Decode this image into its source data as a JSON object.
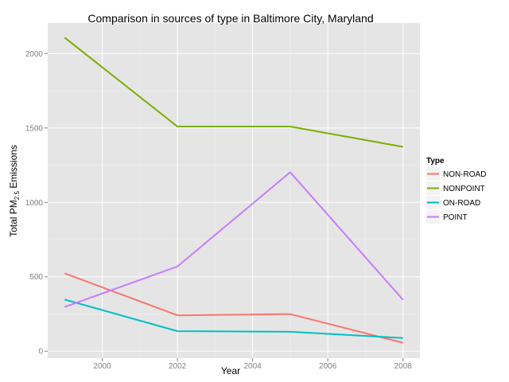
{
  "chart_data": {
    "type": "line",
    "title": "Comparison in sources of type in Baltimore City, Maryland",
    "xlabel": "Year",
    "ylabel_parts": {
      "prefix": "Total PM",
      "subscript": "2.5",
      "suffix": " Emissions"
    },
    "x": [
      1999,
      2002,
      2005,
      2008
    ],
    "xlim": [
      1998.55,
      2008.45
    ],
    "ylim": [
      -47,
      2205
    ],
    "x_ticks": [
      2000,
      2002,
      2004,
      2006,
      2008
    ],
    "y_ticks": [
      0,
      500,
      1000,
      1500,
      2000
    ],
    "x_tick_labels": [
      "2000",
      "2002",
      "2004",
      "2006",
      "2008"
    ],
    "y_tick_labels": [
      "0",
      "500",
      "1000",
      "1500",
      "2000"
    ],
    "grid": true,
    "legend": {
      "title": "Type",
      "position": "right"
    },
    "series": [
      {
        "name": "NON-ROAD",
        "color": "#F8766D",
        "values": [
          522.94,
          240.85,
          248.93,
          55.82
        ]
      },
      {
        "name": "NONPOINT",
        "color": "#7CAE00",
        "values": [
          2107.62,
          1509.5,
          1509.5,
          1373.21
        ]
      },
      {
        "name": "ON-ROAD",
        "color": "#00BFC4",
        "values": [
          346.82,
          134.31,
          130.43,
          88.28
        ]
      },
      {
        "name": "POINT",
        "color": "#C77CFF",
        "values": [
          296.8,
          569.26,
          1202.49,
          344.98
        ]
      }
    ]
  }
}
